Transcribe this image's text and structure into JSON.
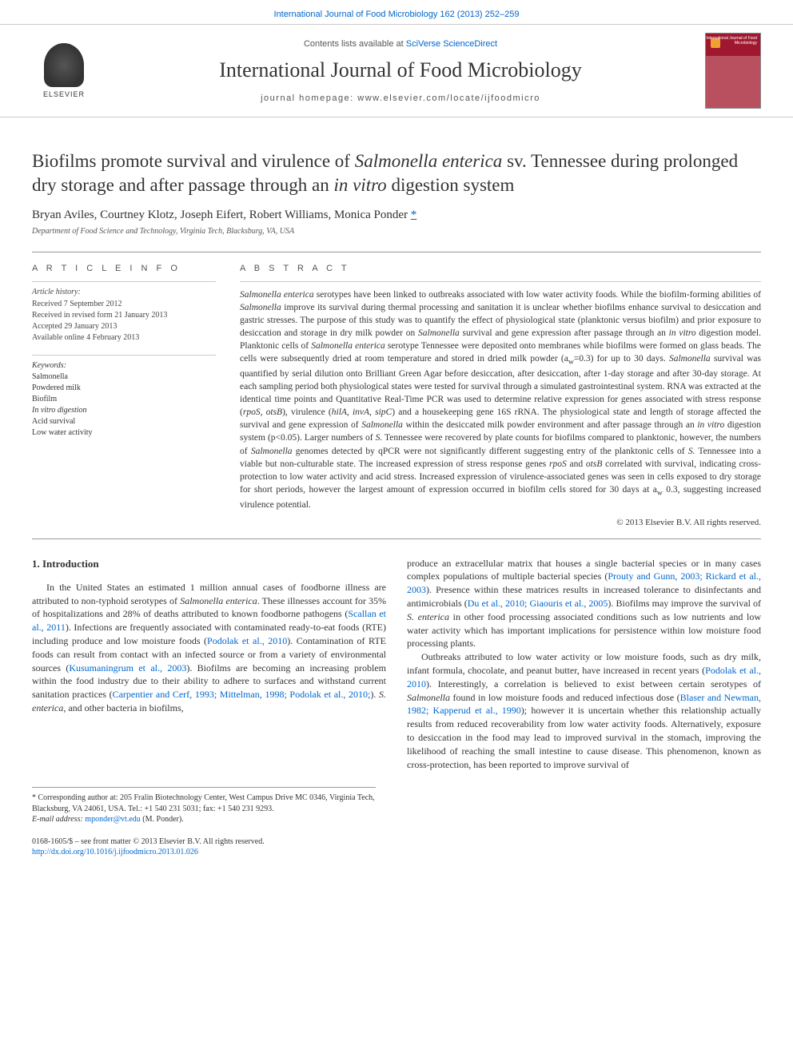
{
  "header": {
    "top_citation": "International Journal of Food Microbiology 162 (2013) 252–259",
    "contents_prefix": "Contents lists available at ",
    "contents_link": "SciVerse ScienceDirect",
    "journal_name": "International Journal of Food Microbiology",
    "homepage_prefix": "journal homepage: ",
    "homepage_url": "www.elsevier.com/locate/ijfoodmicro",
    "publisher": "ELSEVIER",
    "cover_label": "International Journal of Food Microbiology"
  },
  "article": {
    "title_pre": "Biofilms promote survival and virulence of ",
    "title_em1": "Salmonella enterica",
    "title_mid": " sv. Tennessee during prolonged dry storage and after passage through an ",
    "title_em2": "in vitro",
    "title_post": " digestion system",
    "authors_plain": "Bryan Aviles, Courtney Klotz, Joseph Eifert, Robert Williams, Monica Ponder ",
    "corresponding_mark": "*",
    "affiliation": "Department of Food Science and Technology, Virginia Tech, Blacksburg, VA, USA"
  },
  "info": {
    "section": "A R T I C L E    I N F O",
    "history_head": "Article history:",
    "received": "Received 7 September 2012",
    "revised": "Received in revised form 21 January 2013",
    "accepted": "Accepted 29 January 2013",
    "available": "Available online 4 February 2013",
    "keywords_head": "Keywords:",
    "kw1": "Salmonella",
    "kw2": "Powdered milk",
    "kw3": "Biofilm",
    "kw4": "In vitro digestion",
    "kw5": "Acid survival",
    "kw6": "Low water activity"
  },
  "abstract": {
    "section": "A B S T R A C T",
    "text_parts": [
      {
        "t": "Salmonella enterica",
        "em": true
      },
      {
        "t": " serotypes have been linked to outbreaks associated with low water activity foods. While the biofilm-forming abilities of "
      },
      {
        "t": "Salmonella",
        "em": true
      },
      {
        "t": " improve its survival during thermal processing and sanitation it is unclear whether biofilms enhance survival to desiccation and gastric stresses. The purpose of this study was to quantify the effect of physiological state (planktonic versus biofilm) and prior exposure to desiccation and storage in dry milk powder on "
      },
      {
        "t": "Salmonella",
        "em": true
      },
      {
        "t": " survival and gene expression after passage through an "
      },
      {
        "t": "in vitro",
        "em": true
      },
      {
        "t": " digestion model. Planktonic cells of "
      },
      {
        "t": "Salmonella enterica",
        "em": true
      },
      {
        "t": " serotype Tennessee were deposited onto membranes while biofilms were formed on glass beads. The cells were subsequently dried at room temperature and stored in dried milk powder (a"
      },
      {
        "t": "w",
        "sub": true
      },
      {
        "t": "=0.3) for up to 30 days. "
      },
      {
        "t": "Salmonella",
        "em": true
      },
      {
        "t": " survival was quantified by serial dilution onto Brilliant Green Agar before desiccation, after desiccation, after 1-day storage and after 30-day storage. At each sampling period both physiological states were tested for survival through a simulated gastrointestinal system. RNA was extracted at the identical time points and Quantitative Real-Time PCR was used to determine relative expression for genes associated with stress response ("
      },
      {
        "t": "rpoS, otsB",
        "em": true
      },
      {
        "t": "), virulence ("
      },
      {
        "t": "hilA, invA, sipC",
        "em": true
      },
      {
        "t": ") and a housekeeping gene 16S rRNA. The physiological state and length of storage affected the survival and gene expression of "
      },
      {
        "t": "Salmonella",
        "em": true
      },
      {
        "t": " within the desiccated milk powder environment and after passage through an "
      },
      {
        "t": "in vitro",
        "em": true
      },
      {
        "t": " digestion system (p<0.05). Larger numbers of "
      },
      {
        "t": "S.",
        "em": true
      },
      {
        "t": " Tennessee were recovered by plate counts for biofilms compared to planktonic, however, the numbers of "
      },
      {
        "t": "Salmonella",
        "em": true
      },
      {
        "t": " genomes detected by qPCR were not significantly different suggesting entry of the planktonic cells of "
      },
      {
        "t": "S.",
        "em": true
      },
      {
        "t": " Tennessee into a viable but non-culturable state. The increased expression of stress response genes "
      },
      {
        "t": "rpoS",
        "em": true
      },
      {
        "t": " and "
      },
      {
        "t": "otsB",
        "em": true
      },
      {
        "t": " correlated with survival, indicating cross-protection to low water activity and acid stress. Increased expression of virulence-associated genes was seen in cells exposed to dry storage for short periods, however the largest amount of expression occurred in biofilm cells stored for 30 days at a"
      },
      {
        "t": "w",
        "sub": true
      },
      {
        "t": " 0.3, suggesting increased virulence potential."
      }
    ],
    "copyright": "© 2013 Elsevier B.V. All rights reserved."
  },
  "body": {
    "heading": "1. Introduction",
    "col1_parts": [
      {
        "t": "In the United States an estimated 1 million annual cases of foodborne illness are attributed to non-typhoid serotypes of "
      },
      {
        "t": "Salmonella enterica",
        "em": true
      },
      {
        "t": ". These illnesses account for 35% of hospitalizations and 28% of deaths attributed to known foodborne pathogens ("
      },
      {
        "t": "Scallan et al., 2011",
        "link": true
      },
      {
        "t": "). Infections are frequently associated with contaminated ready-to-eat foods (RTE) including produce and low moisture foods ("
      },
      {
        "t": "Podolak et al., 2010",
        "link": true
      },
      {
        "t": "). Contamination of RTE foods can result from contact with an infected source or from a variety of environmental sources ("
      },
      {
        "t": "Kusumaningrum et al., 2003",
        "link": true
      },
      {
        "t": "). Biofilms are becoming an increasing problem within the food industry due to their ability to adhere to surfaces and withstand current sanitation practices ("
      },
      {
        "t": "Carpentier and Cerf, 1993; Mittelman, 1998; Podolak et al., 2010;",
        "link": true
      },
      {
        "t": "). "
      },
      {
        "t": "S. enterica",
        "em": true
      },
      {
        "t": ", and other bacteria in biofilms,"
      }
    ],
    "col2_parts": [
      {
        "t": "produce an extracellular matrix that houses a single bacterial species or in many cases complex populations of multiple bacterial species ("
      },
      {
        "t": "Prouty and Gunn, 2003; Rickard et al., 2003",
        "link": true
      },
      {
        "t": "). Presence within these matrices results in increased tolerance to disinfectants and antimicrobials ("
      },
      {
        "t": "Du et al., 2010; Giaouris et al., 2005",
        "link": true
      },
      {
        "t": "). Biofilms may improve the survival of "
      },
      {
        "t": "S. enterica",
        "em": true
      },
      {
        "t": " in other food processing associated conditions such as low nutrients and low water activity which has important implications for persistence within low moisture food processing plants."
      }
    ],
    "col2_p2_parts": [
      {
        "t": "Outbreaks attributed to low water activity or low moisture foods, such as dry milk, infant formula, chocolate, and peanut butter, have increased in recent years ("
      },
      {
        "t": "Podolak et al., 2010",
        "link": true
      },
      {
        "t": "). Interestingly, a correlation is believed to exist between certain serotypes of "
      },
      {
        "t": "Salmonella",
        "em": true
      },
      {
        "t": " found in low moisture foods and reduced infectious dose ("
      },
      {
        "t": "Blaser and Newman, 1982; Kapperud et al., 1990",
        "link": true
      },
      {
        "t": "); however it is uncertain whether this relationship actually results from reduced recoverability from low water activity foods. Alternatively, exposure to desiccation in the food may lead to improved survival in the stomach, improving the likelihood of reaching the small intestine to cause disease. This phenomenon, known as cross-protection, has been reported to improve survival of"
      }
    ]
  },
  "footnote": {
    "star": "* Corresponding author at: 205 Fralin Biotechnology Center, West Campus Drive MC 0346, Virginia Tech, Blacksburg, VA 24061, USA. Tel.: +1 540 231 5031; fax: +1 540 231 9293.",
    "email_label": "E-mail address: ",
    "email": "mponder@vt.edu",
    "email_name": " (M. Ponder)."
  },
  "footer": {
    "issn": "0168-1605/$ – see front matter © 2013 Elsevier B.V. All rights reserved.",
    "doi": "http://dx.doi.org/10.1016/j.ijfoodmicro.2013.01.026"
  },
  "colors": {
    "link": "#0066cc",
    "text": "#333333",
    "rule": "#999999",
    "cover_top": "#a01830",
    "cover_bottom": "#b85060",
    "cover_badge": "#f0a030"
  }
}
